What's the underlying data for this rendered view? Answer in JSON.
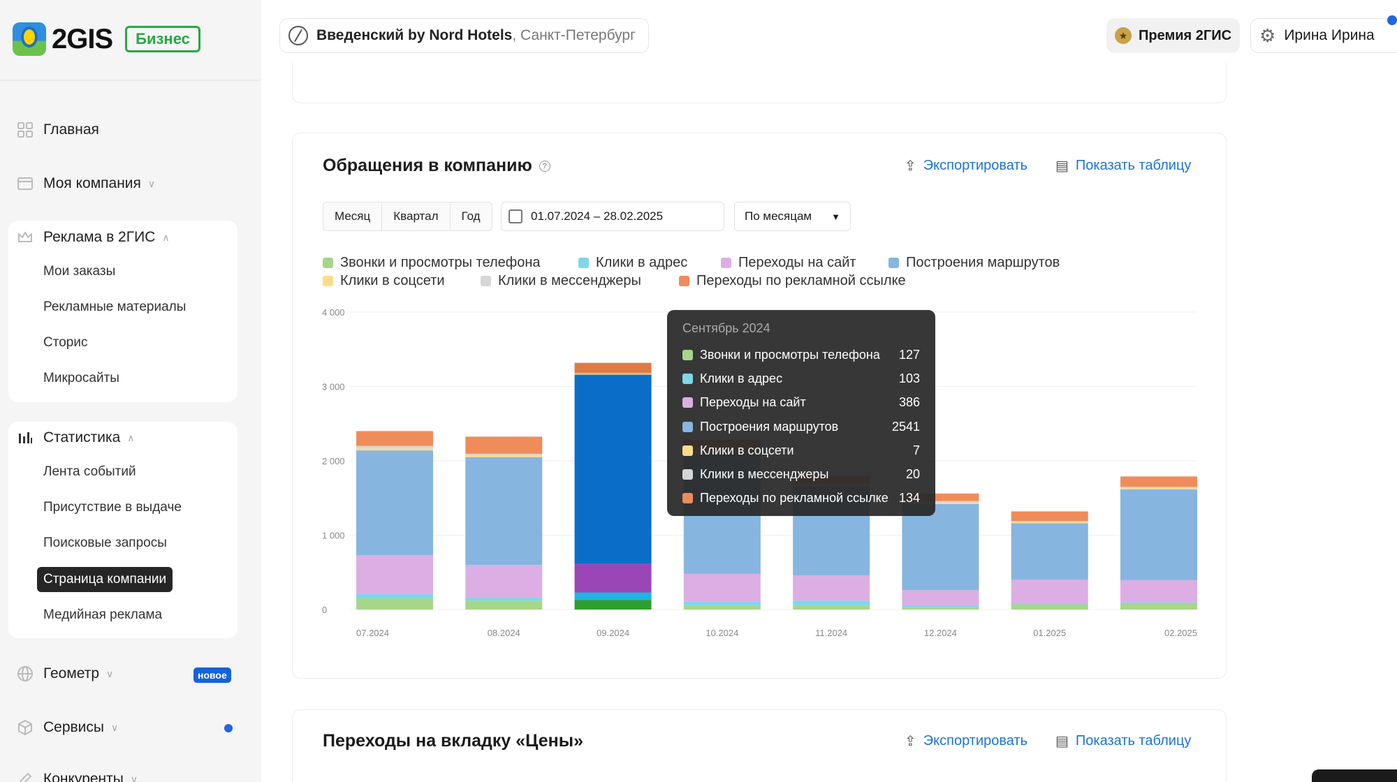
{
  "brand": {
    "logo": "2GIS",
    "badge": "Бизнес"
  },
  "sidebar": {
    "home": "Главная",
    "company": "Моя компания",
    "ads": "Реклама в 2ГИС",
    "ads_items": [
      "Мои заказы",
      "Рекламные материалы",
      "Сторис",
      "Микросайты"
    ],
    "stats": "Статистика",
    "stats_items": [
      "Лента событий",
      "Присутствие в выдаче",
      "Поисковые запросы",
      "Страница компании",
      "Медийная реклама"
    ],
    "geometer": "Геометр",
    "geometer_badge": "новое",
    "services": "Сервисы",
    "competitors": "Конкуренты"
  },
  "header": {
    "company_name": "Введенский by Nord Hotels",
    "company_city": ", Санкт-Петербург",
    "premium": "Премия 2ГИС",
    "user": "Ирина Ирина"
  },
  "card1": {
    "title": "Обращения в компанию",
    "export": "Экспортировать",
    "show_table": "Показать таблицу",
    "periods": [
      "Месяц",
      "Квартал",
      "Год"
    ],
    "date_range": "01.07.2024 – 28.02.2025",
    "grouping": "По месяцам"
  },
  "card2": {
    "title": "Переходы на вкладку «Цены»",
    "export": "Экспортировать",
    "show_table": "Показать таблицу"
  },
  "chart_data": {
    "type": "bar",
    "stacked": true,
    "categories": [
      "07.2024",
      "08.2024",
      "09.2024",
      "10.2024",
      "11.2024",
      "12.2024",
      "01.2025",
      "02.2025"
    ],
    "y_ticks": [
      "0",
      "1 000",
      "2 000",
      "3 000",
      "4 000"
    ],
    "ylim": [
      0,
      4000
    ],
    "grid": true,
    "legend_position": "top-left",
    "series": [
      {
        "name": "Звонки и просмотры телефона",
        "color": "#a6d68a",
        "values": [
          150,
          120,
          127,
          60,
          60,
          30,
          70,
          80
        ]
      },
      {
        "name": "Клики в адрес",
        "color": "#7fd6ea",
        "values": [
          60,
          40,
          103,
          50,
          60,
          30,
          10,
          15
        ]
      },
      {
        "name": "Переходы на сайт",
        "color": "#dcaee4",
        "values": [
          520,
          440,
          386,
          370,
          340,
          200,
          320,
          300
        ]
      },
      {
        "name": "Построения маршрутов",
        "color": "#86b5df",
        "values": [
          1410,
          1450,
          2541,
          1620,
          1200,
          1160,
          760,
          1220
        ]
      },
      {
        "name": "Клики в соцсети",
        "color": "#ffdb8a",
        "values": [
          25,
          20,
          7,
          15,
          15,
          15,
          15,
          15
        ]
      },
      {
        "name": "Клики в мессенджеры",
        "color": "#d6d6d6",
        "values": [
          35,
          25,
          20,
          25,
          25,
          25,
          15,
          20
        ]
      },
      {
        "name": "Переходы по рекламной ссылке",
        "color": "#f08c5a",
        "values": [
          200,
          230,
          134,
          140,
          100,
          100,
          130,
          140
        ]
      }
    ],
    "highlighted_category": "09.2024",
    "highlight_colors": [
      "#2f9e2f",
      "#1fb3e0",
      "#9a46b6",
      "#0a6ec8",
      "#e6c34d",
      "#b9b9b9",
      "#e07a45"
    ]
  },
  "tooltip": {
    "title": "Сентябрь 2024",
    "rows": [
      {
        "label": "Звонки и просмотры телефона",
        "value": "127",
        "color": "#a6d68a"
      },
      {
        "label": "Клики в адрес",
        "value": "103",
        "color": "#7fd6ea"
      },
      {
        "label": "Переходы на сайт",
        "value": "386",
        "color": "#dcaee4"
      },
      {
        "label": "Построения маршрутов",
        "value": "2541",
        "color": "#86b5df"
      },
      {
        "label": "Клики в соцсети",
        "value": "7",
        "color": "#ffdb8a"
      },
      {
        "label": "Клики в мессенджеры",
        "value": "20",
        "color": "#d6d6d6"
      },
      {
        "label": "Переходы по рекламной ссылке",
        "value": "134",
        "color": "#f08c5a"
      }
    ]
  }
}
